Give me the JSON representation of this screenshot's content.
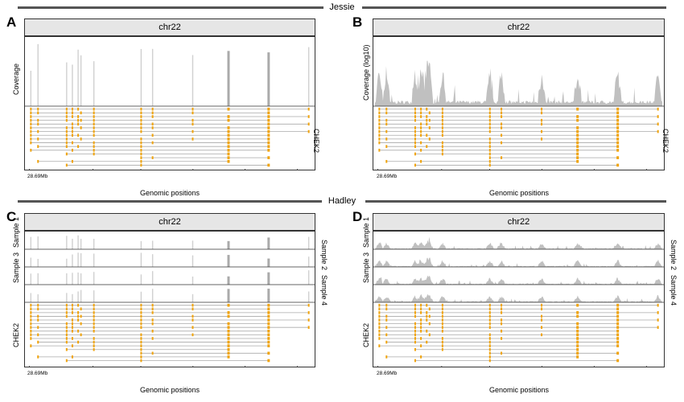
{
  "sections": [
    {
      "label": "Jessie"
    },
    {
      "label": "Hadley"
    }
  ],
  "panels": [
    {
      "letter": "A",
      "strip": "chr22",
      "tracks": [
        "Coverage"
      ],
      "track_side": "left",
      "gene": "CHEK2",
      "gene_side": "right",
      "tick": "28.69Mb",
      "xlabel": "Genomic positions",
      "style": "spikes"
    },
    {
      "letter": "B",
      "strip": "chr22",
      "tracks": [
        "Coverage (log10)"
      ],
      "track_side": "left",
      "gene": "CHEK2",
      "gene_side": "right",
      "tick": "28.69Mb",
      "xlabel": "Genomic positions",
      "style": "log"
    },
    {
      "letter": "C",
      "strip": "chr22",
      "tracks": [
        "Sample 1",
        "Sample 2",
        "Sample 3",
        "Sample 4"
      ],
      "track_side": "alternate",
      "gene": "CHEK2",
      "gene_side": "left",
      "tick": "28.69Mb",
      "xlabel": "Genomic positions",
      "style": "spikes"
    },
    {
      "letter": "D",
      "strip": "chr22",
      "tracks": [
        "Sample 1",
        "Sample 2",
        "Sample 3",
        "Sample 4"
      ],
      "track_side": "alternate",
      "gene": "CHEK2",
      "gene_side": "left",
      "tick": "28.69Mb",
      "xlabel": "Genomic positions",
      "style": "area"
    }
  ],
  "chart_data": {
    "type": "area",
    "chromosome": "chr22",
    "gene": "CHEK2",
    "x_tick_labels": [
      "28.69Mb"
    ],
    "xlabel": "Genomic positions",
    "exon_positions_fraction": [
      0.015,
      0.04,
      0.14,
      0.16,
      0.18,
      0.19,
      0.235,
      0.4,
      0.44,
      0.58,
      0.705,
      0.845,
      0.985
    ],
    "colors": {
      "exon": "#f0a30a",
      "intron": "#aaaaaa",
      "coverage": "#c0c0c0",
      "axis": "#333333",
      "strip": "#e6e6e6"
    }
  }
}
